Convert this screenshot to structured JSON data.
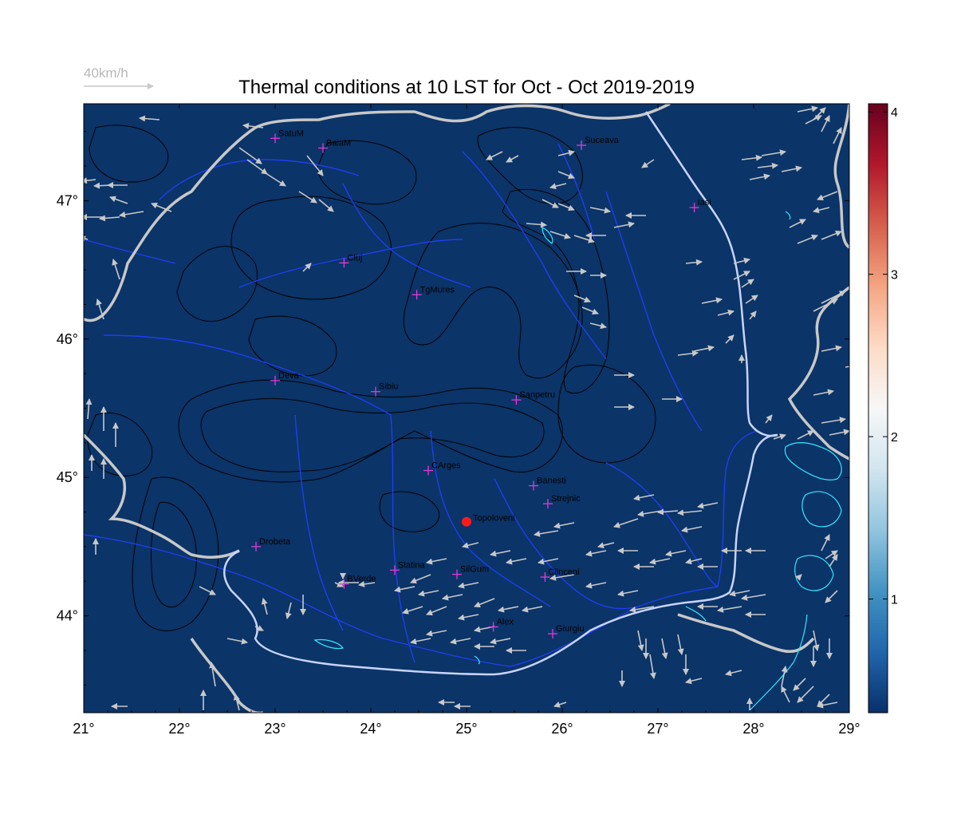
{
  "title": "Thermal conditions at 10 LST for Oct - Oct  2019-2019",
  "wind_scale": {
    "label": "40km/h"
  },
  "map": {
    "lon_range": [
      21,
      29
    ],
    "lat_range": [
      43.3,
      47.7
    ],
    "lon_ticks": [
      {
        "value": 21,
        "label": "21°"
      },
      {
        "value": 22,
        "label": "22°"
      },
      {
        "value": 23,
        "label": "23°"
      },
      {
        "value": 24,
        "label": "24°"
      },
      {
        "value": 25,
        "label": "25°"
      },
      {
        "value": 26,
        "label": "26°"
      },
      {
        "value": 27,
        "label": "27°"
      },
      {
        "value": 28,
        "label": "28°"
      },
      {
        "value": 29,
        "label": "29°"
      }
    ],
    "lat_ticks": [
      {
        "value": 44,
        "label": "44°"
      },
      {
        "value": 45,
        "label": "45°"
      },
      {
        "value": 46,
        "label": "46°"
      },
      {
        "value": 47,
        "label": "47°"
      }
    ],
    "colors": {
      "background": "#0b3468",
      "rivers": "#1f3ef0",
      "border": "#c8c8c8",
      "contours": "#000000",
      "lakes": "#35e8ff",
      "wind_arrows": "#c8c8c8",
      "station_marker": "#e23ad8",
      "highlight_station": "#ff1a1a"
    },
    "stations": [
      {
        "name": "SatuM",
        "lon": 23.0,
        "lat": 47.45
      },
      {
        "name": "BaiaM",
        "lon": 23.5,
        "lat": 47.38
      },
      {
        "name": "Suceava",
        "lon": 26.2,
        "lat": 47.4
      },
      {
        "name": "Iasi",
        "lon": 27.38,
        "lat": 46.95
      },
      {
        "name": "Cluj",
        "lon": 23.72,
        "lat": 46.55
      },
      {
        "name": "TgMures",
        "lon": 24.48,
        "lat": 46.32
      },
      {
        "name": "Deva",
        "lon": 23.0,
        "lat": 45.7
      },
      {
        "name": "Sibiu",
        "lon": 24.05,
        "lat": 45.62
      },
      {
        "name": "Sanpetru",
        "lon": 25.52,
        "lat": 45.56
      },
      {
        "name": "CArges",
        "lon": 24.6,
        "lat": 45.05
      },
      {
        "name": "Banesti",
        "lon": 25.7,
        "lat": 44.94
      },
      {
        "name": "Strejnic",
        "lon": 25.85,
        "lat": 44.81
      },
      {
        "name": "Drobeta",
        "lon": 22.8,
        "lat": 44.5
      },
      {
        "name": "Slatina",
        "lon": 24.25,
        "lat": 44.33
      },
      {
        "name": "SilGum",
        "lon": 24.9,
        "lat": 44.3
      },
      {
        "name": "Clinceni",
        "lon": 25.82,
        "lat": 44.28
      },
      {
        "name": "BVerde",
        "lon": 23.72,
        "lat": 44.23
      },
      {
        "name": "Alex",
        "lon": 25.28,
        "lat": 43.92
      },
      {
        "name": "Giurgiu",
        "lon": 25.9,
        "lat": 43.87
      }
    ],
    "highlight": {
      "name": "Topoloveni",
      "lon": 25.0,
      "lat": 44.68
    }
  },
  "colorbar": {
    "range": [
      0.3,
      4.05
    ],
    "ticks": [
      {
        "value": 1,
        "label": "1"
      },
      {
        "value": 2,
        "label": "2"
      },
      {
        "value": 3,
        "label": "3"
      },
      {
        "value": 4,
        "label": "4"
      }
    ],
    "colors": [
      "#08306b",
      "#2166ac",
      "#4393c3",
      "#92c5de",
      "#d1e5f0",
      "#f7f7f7",
      "#fddbc7",
      "#f4a582",
      "#d6604d",
      "#b2182b",
      "#67001f"
    ]
  }
}
